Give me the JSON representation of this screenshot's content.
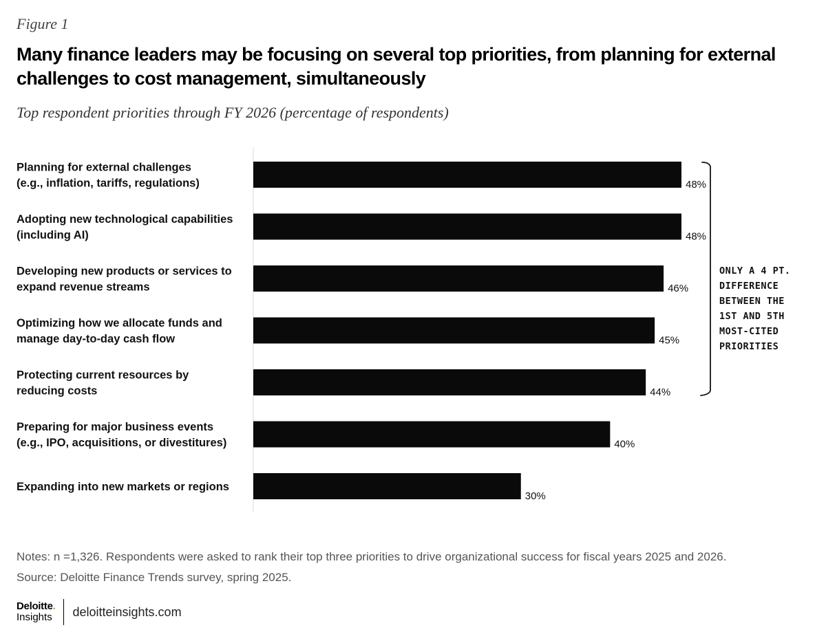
{
  "figure_label": "Figure 1",
  "title": "Many finance leaders may be focusing on several top priorities, from planning for external challenges to cost management, simultaneously",
  "subtitle": "Top respondent priorities through FY 2026 (percentage of respondents)",
  "chart_data": {
    "type": "bar",
    "orientation": "horizontal",
    "categories": [
      [
        "Planning for external challenges",
        "(e.g., inflation, tariffs, regulations)"
      ],
      [
        "Adopting new technological capabilities",
        "(including AI)"
      ],
      [
        "Developing new products or services to",
        "expand revenue streams"
      ],
      [
        "Optimizing how we allocate funds and",
        "manage day-to-day cash flow"
      ],
      [
        "Protecting current resources by",
        "reducing costs"
      ],
      [
        "Preparing for major business events",
        "(e.g., IPO, acquisitions, or divestitures)"
      ],
      [
        "Expanding into new markets or regions"
      ]
    ],
    "values": [
      48,
      48,
      46,
      45,
      44,
      40,
      30
    ],
    "value_labels": [
      "48%",
      "48%",
      "46%",
      "45%",
      "44%",
      "40%",
      "30%"
    ],
    "xlim": [
      0,
      50
    ],
    "unit": "%",
    "bar_color": "#0A0A0A",
    "annotation": {
      "bracket_span": [
        0,
        4
      ],
      "lines": [
        "ONLY A 4 PT.",
        "DIFFERENCE",
        "BETWEEN THE",
        "1ST AND 5TH",
        "MOST-CITED",
        "PRIORITIES"
      ]
    }
  },
  "notes": "Notes: n =1,326. Respondents were asked to rank their top three priorities to drive organizational success for fiscal years 2025 and 2026.",
  "source": "Source: Deloitte Finance Trends survey, spring 2025.",
  "footer": {
    "brand": "Deloitte",
    "brand_dot": ".",
    "brand_sub": "Insights",
    "site": "deloitteinsights.com",
    "accent_color": "#86BC25"
  }
}
